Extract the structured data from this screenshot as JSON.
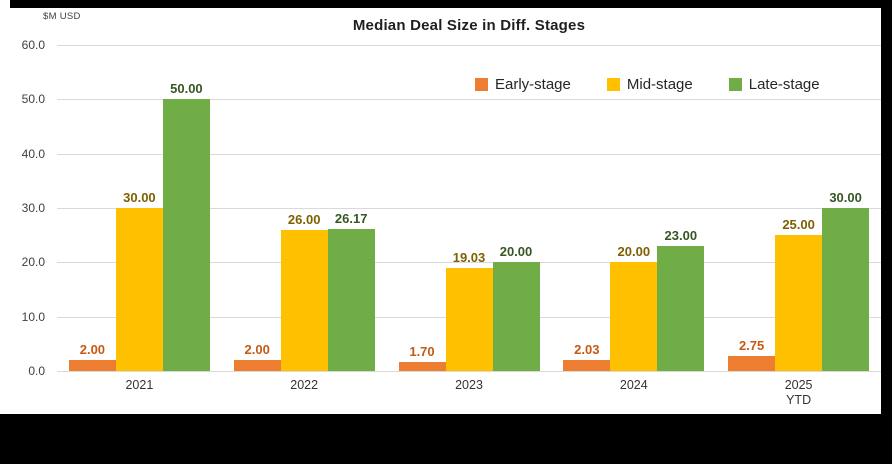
{
  "chart": {
    "title": "Median Deal Size in Diff. Stages",
    "unit_label": "$M USD"
  },
  "chart_data": {
    "type": "bar",
    "title": "Median Deal Size in Diff. Stages",
    "unit_label": "$M USD",
    "categories": [
      "2021",
      "2022",
      "2023",
      "2024",
      "2025 YTD"
    ],
    "category_lines": [
      [
        "2021"
      ],
      [
        "2022"
      ],
      [
        "2023"
      ],
      [
        "2024"
      ],
      [
        "2025",
        "YTD"
      ]
    ],
    "series": [
      {
        "name": "Early-stage",
        "color": "#ED7D31",
        "label_color": "#C55A11",
        "values": [
          2.0,
          2.0,
          1.7,
          2.03,
          2.75
        ],
        "labels": [
          "2.00",
          "2.00",
          "1.70",
          "2.03",
          "2.75"
        ]
      },
      {
        "name": "Mid-stage",
        "color": "#FFC000",
        "label_color": "#7F6000",
        "values": [
          30.0,
          26.0,
          19.03,
          20.0,
          25.0
        ],
        "labels": [
          "30.00",
          "26.00",
          "19.03",
          "20.00",
          "25.00"
        ]
      },
      {
        "name": "Late-stage",
        "color": "#70AD47",
        "label_color": "#375623",
        "values": [
          50.0,
          26.17,
          20.0,
          23.0,
          30.0
        ],
        "labels": [
          "50.00",
          "26.17",
          "20.00",
          "23.00",
          "30.00"
        ]
      }
    ],
    "ylim": [
      0,
      60
    ],
    "yticks": [
      "60.0",
      "50.0",
      "40.0",
      "30.0",
      "20.0",
      "10.0",
      "0.0"
    ],
    "grid": true,
    "gridline_color": "#D9D9D9",
    "legend_position": "top-right-inside"
  }
}
